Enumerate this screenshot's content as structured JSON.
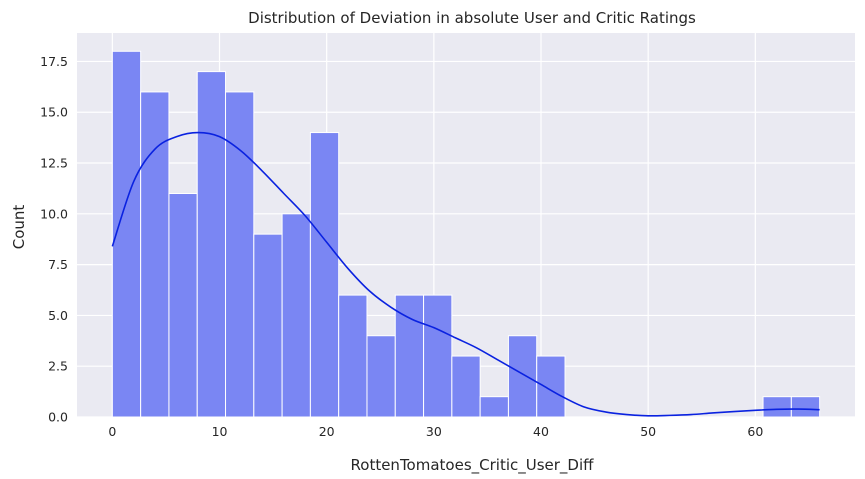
{
  "chart_data": {
    "type": "bar",
    "title": "Distribution of Deviation in absolute User and Critic Ratings",
    "xlabel": "RottenTomatoes_Critic_User_Diff",
    "ylabel": "Count",
    "xlim": [
      -3.3,
      69.3
    ],
    "ylim": [
      0,
      18.9
    ],
    "xticks": [
      0,
      10,
      20,
      30,
      40,
      50,
      60
    ],
    "yticks": [
      0.0,
      2.5,
      5.0,
      7.5,
      10.0,
      12.5,
      15.0,
      17.5
    ],
    "xtick_labels": [
      "0",
      "10",
      "20",
      "30",
      "40",
      "50",
      "60"
    ],
    "ytick_labels": [
      "0.0",
      "2.5",
      "5.0",
      "7.5",
      "10.0",
      "12.5",
      "15.0",
      "17.5"
    ],
    "bin_start": 0,
    "bin_width": 2.64,
    "counts": [
      18,
      16,
      11,
      17,
      16,
      9,
      10,
      14,
      6,
      4,
      6,
      6,
      3,
      1,
      4,
      3,
      0,
      0,
      0,
      0,
      0,
      0,
      0,
      1,
      1
    ],
    "kde": {
      "x": [
        0,
        2,
        4,
        6,
        8,
        10,
        12,
        14,
        16,
        18,
        20,
        22,
        24,
        26,
        28,
        30,
        32,
        34,
        36,
        38,
        40,
        42,
        44,
        46,
        48,
        50,
        52,
        54,
        56,
        58,
        60,
        62,
        64,
        66
      ],
      "y": [
        8.4,
        11.6,
        13.2,
        13.8,
        14.0,
        13.8,
        13.1,
        12.1,
        11.0,
        9.9,
        8.6,
        7.3,
        6.2,
        5.4,
        4.8,
        4.4,
        3.9,
        3.4,
        2.8,
        2.2,
        1.6,
        1.0,
        0.5,
        0.25,
        0.12,
        0.06,
        0.08,
        0.12,
        0.2,
        0.27,
        0.33,
        0.38,
        0.39,
        0.36
      ]
    },
    "grid": true,
    "colors": {
      "background": "#eaeaf2",
      "grid": "#ffffff",
      "bar_fill": "#7a86f3",
      "bar_edge": "#ffffff",
      "kde_line": "#0a22e0"
    }
  }
}
